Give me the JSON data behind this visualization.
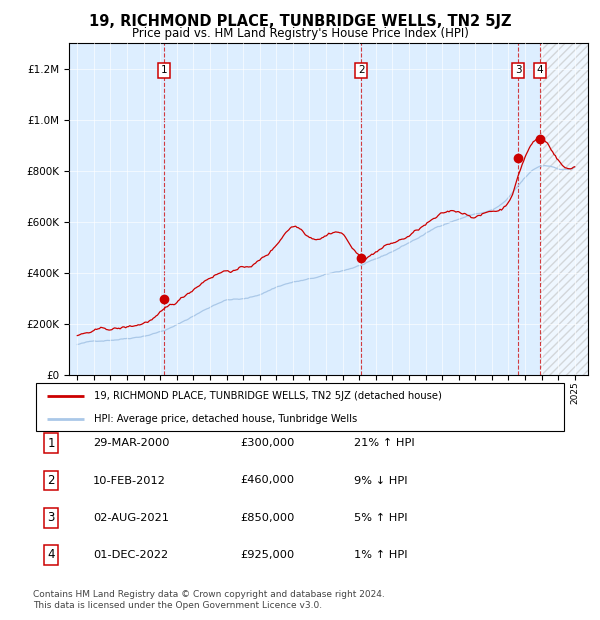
{
  "title": "19, RICHMOND PLACE, TUNBRIDGE WELLS, TN2 5JZ",
  "subtitle": "Price paid vs. HM Land Registry's House Price Index (HPI)",
  "title_fontsize": 10.5,
  "subtitle_fontsize": 8.5,
  "legend_line1": "19, RICHMOND PLACE, TUNBRIDGE WELLS, TN2 5JZ (detached house)",
  "legend_line2": "HPI: Average price, detached house, Tunbridge Wells",
  "transactions": [
    {
      "num": 1,
      "date": "29-MAR-2000",
      "price": 300000,
      "pct": "21%",
      "dir": "↑",
      "year": 2000.25
    },
    {
      "num": 2,
      "date": "10-FEB-2012",
      "price": 460000,
      "pct": "9%",
      "dir": "↓",
      "year": 2012.12
    },
    {
      "num": 3,
      "date": "02-AUG-2021",
      "price": 850000,
      "pct": "5%",
      "dir": "↑",
      "year": 2021.58
    },
    {
      "num": 4,
      "date": "01-DEC-2022",
      "price": 925000,
      "pct": "1%",
      "dir": "↑",
      "year": 2022.92
    }
  ],
  "footnote1": "Contains HM Land Registry data © Crown copyright and database right 2024.",
  "footnote2": "This data is licensed under the Open Government Licence v3.0.",
  "hpi_color": "#aac8e8",
  "price_color": "#cc0000",
  "bg_color": "#ddeeff",
  "ylim": [
    0,
    1300000
  ],
  "xlim_start": 1994.5,
  "xlim_end": 2025.8,
  "hpi_base_points": {
    "1995": 120000,
    "1997": 140000,
    "1999": 162000,
    "2000": 180000,
    "2001": 205000,
    "2002": 240000,
    "2003": 275000,
    "2004": 305000,
    "2005": 308000,
    "2006": 325000,
    "2007": 355000,
    "2008": 375000,
    "2009": 385000,
    "2010": 400000,
    "2011": 415000,
    "2012": 435000,
    "2013": 455000,
    "2014": 485000,
    "2015": 520000,
    "2016": 555000,
    "2017": 590000,
    "2018": 615000,
    "2019": 635000,
    "2020": 650000,
    "2021": 695000,
    "2022": 770000,
    "2023": 815000,
    "2024": 808000,
    "2025": 815000
  },
  "price_base_points": {
    "1995": 155000,
    "1997": 172000,
    "1999": 195000,
    "2000": 228000,
    "2001": 265000,
    "2002": 320000,
    "2003": 375000,
    "2004": 405000,
    "2005": 415000,
    "2006": 445000,
    "2007": 505000,
    "2008": 585000,
    "2009": 555000,
    "2010": 570000,
    "2011": 578000,
    "2012": 488000,
    "2013": 510000,
    "2014": 540000,
    "2015": 568000,
    "2016": 608000,
    "2017": 638000,
    "2018": 648000,
    "2019": 638000,
    "2020": 655000,
    "2021": 698000,
    "2022": 875000,
    "2023": 945000,
    "2024": 868000,
    "2025": 842000
  },
  "table_data": [
    [
      "1",
      "29-MAR-2000",
      "£300,000",
      "21% ↑ HPI"
    ],
    [
      "2",
      "10-FEB-2012",
      "£460,000",
      "9% ↓ HPI"
    ],
    [
      "3",
      "02-AUG-2021",
      "£850,000",
      "5% ↑ HPI"
    ],
    [
      "4",
      "01-DEC-2022",
      "£925,000",
      "1% ↑ HPI"
    ]
  ]
}
